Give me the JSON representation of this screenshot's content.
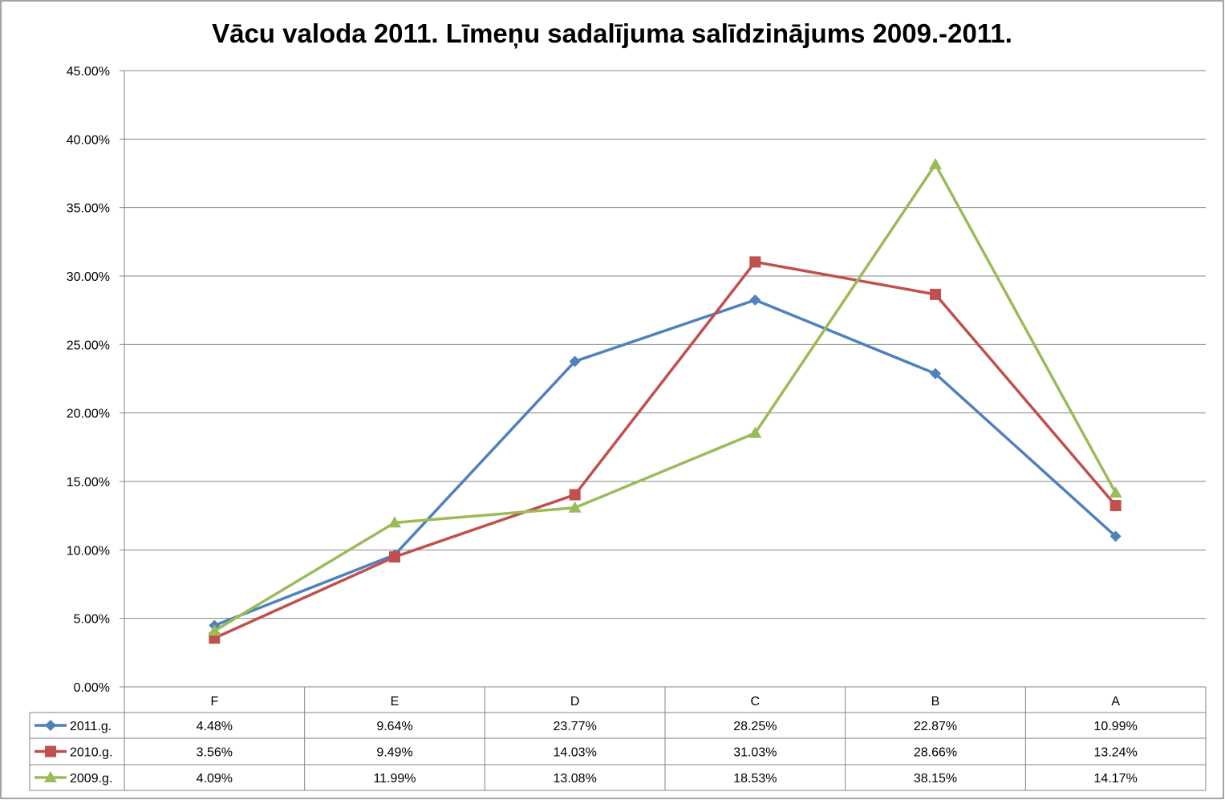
{
  "chart_data": {
    "type": "line",
    "title": "Vācu valoda 2011. Līmeņu sadalījuma salīdzinājums 2009.-2011.",
    "xlabel": "",
    "ylabel": "",
    "ylim": [
      0,
      0.45
    ],
    "y_ticks": [
      "0.00%",
      "5.00%",
      "10.00%",
      "15.00%",
      "20.00%",
      "25.00%",
      "30.00%",
      "35.00%",
      "40.00%",
      "45.00%"
    ],
    "grid": true,
    "legend": "data-table-left",
    "categories": [
      "F",
      "E",
      "D",
      "C",
      "B",
      "A"
    ],
    "series": [
      {
        "name": "2011.g.",
        "color": "#4F81BD",
        "marker": "diamond",
        "values": [
          4.48,
          9.64,
          23.77,
          28.25,
          22.87,
          10.99
        ],
        "labels": [
          "4.48%",
          "9.64%",
          "23.77%",
          "28.25%",
          "22.87%",
          "10.99%"
        ]
      },
      {
        "name": "2010.g.",
        "color": "#C0504D",
        "marker": "square",
        "values": [
          3.56,
          9.49,
          14.03,
          31.03,
          28.66,
          13.24
        ],
        "labels": [
          "3.56%",
          "9.49%",
          "14.03%",
          "31.03%",
          "28.66%",
          "13.24%"
        ]
      },
      {
        "name": "2009.g.",
        "color": "#9BBB59",
        "marker": "triangle",
        "values": [
          4.09,
          11.99,
          13.08,
          18.53,
          38.15,
          14.17
        ],
        "labels": [
          "4.09%",
          "11.99%",
          "13.08%",
          "18.53%",
          "38.15%",
          "14.17%"
        ]
      }
    ]
  }
}
